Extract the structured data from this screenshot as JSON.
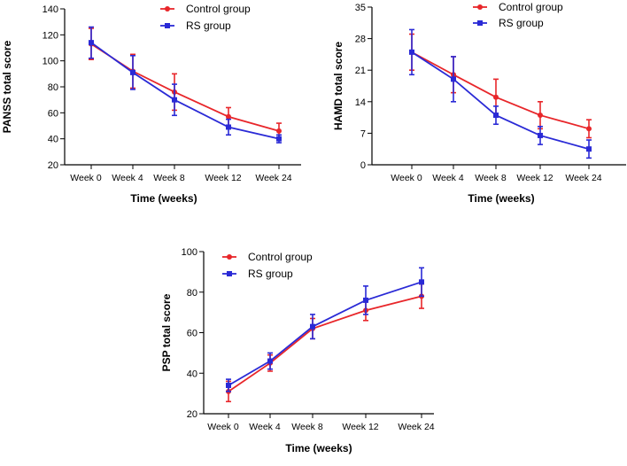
{
  "colors": {
    "control": "#e8262a",
    "rs": "#2a2ad6",
    "axis": "#000000"
  },
  "chart_data": [
    {
      "id": "panss",
      "type": "line",
      "title": "",
      "xlabel": "Time (weeks)",
      "ylabel": "PANSS total score",
      "categories": [
        "Week 0",
        "Week 4",
        "Week 8",
        "Week 12",
        "Week 24"
      ],
      "ylim": [
        20,
        140
      ],
      "yticks": [
        "20",
        "40",
        "60",
        "80",
        "100",
        "120",
        "140"
      ],
      "legend_position": "top",
      "series": [
        {
          "name": "Control group",
          "values": [
            113,
            92,
            76,
            57,
            46
          ],
          "err": [
            12,
            13,
            14,
            7,
            6
          ]
        },
        {
          "name": "RS group",
          "values": [
            114,
            91,
            70,
            49,
            40
          ],
          "err": [
            12,
            13,
            12,
            6,
            3
          ]
        }
      ]
    },
    {
      "id": "hamd",
      "type": "line",
      "title": "",
      "xlabel": "Time (weeks)",
      "ylabel": "HAMD total score",
      "categories": [
        "Week 0",
        "Week 4",
        "Week 8",
        "Week 12",
        "Week 24"
      ],
      "ylim": [
        0,
        35
      ],
      "yticks": [
        "0",
        "7",
        "14",
        "21",
        "28",
        "35"
      ],
      "legend_position": "top",
      "series": [
        {
          "name": "Control group",
          "values": [
            25,
            20,
            15,
            11,
            8
          ],
          "err": [
            4,
            4,
            4,
            3,
            2
          ]
        },
        {
          "name": "RS group",
          "values": [
            25,
            19,
            11,
            6.5,
            3.5
          ],
          "err": [
            5,
            5,
            2,
            2,
            2
          ]
        }
      ]
    },
    {
      "id": "psp",
      "type": "line",
      "title": "",
      "xlabel": "Time (weeks)",
      "ylabel": "PSP total score",
      "categories": [
        "Week 0",
        "Week 4",
        "Week 8",
        "Week 12",
        "Week 24"
      ],
      "ylim": [
        20,
        100
      ],
      "yticks": [
        "20",
        "40",
        "60",
        "80",
        "100"
      ],
      "legend_position": "top-left",
      "series": [
        {
          "name": "Control group",
          "values": [
            31,
            45,
            62,
            71,
            78
          ],
          "err": [
            5,
            4,
            5,
            5,
            6
          ]
        },
        {
          "name": "RS group",
          "values": [
            34,
            46,
            63,
            76,
            85
          ],
          "err": [
            3,
            4,
            6,
            7,
            7
          ]
        }
      ]
    }
  ]
}
